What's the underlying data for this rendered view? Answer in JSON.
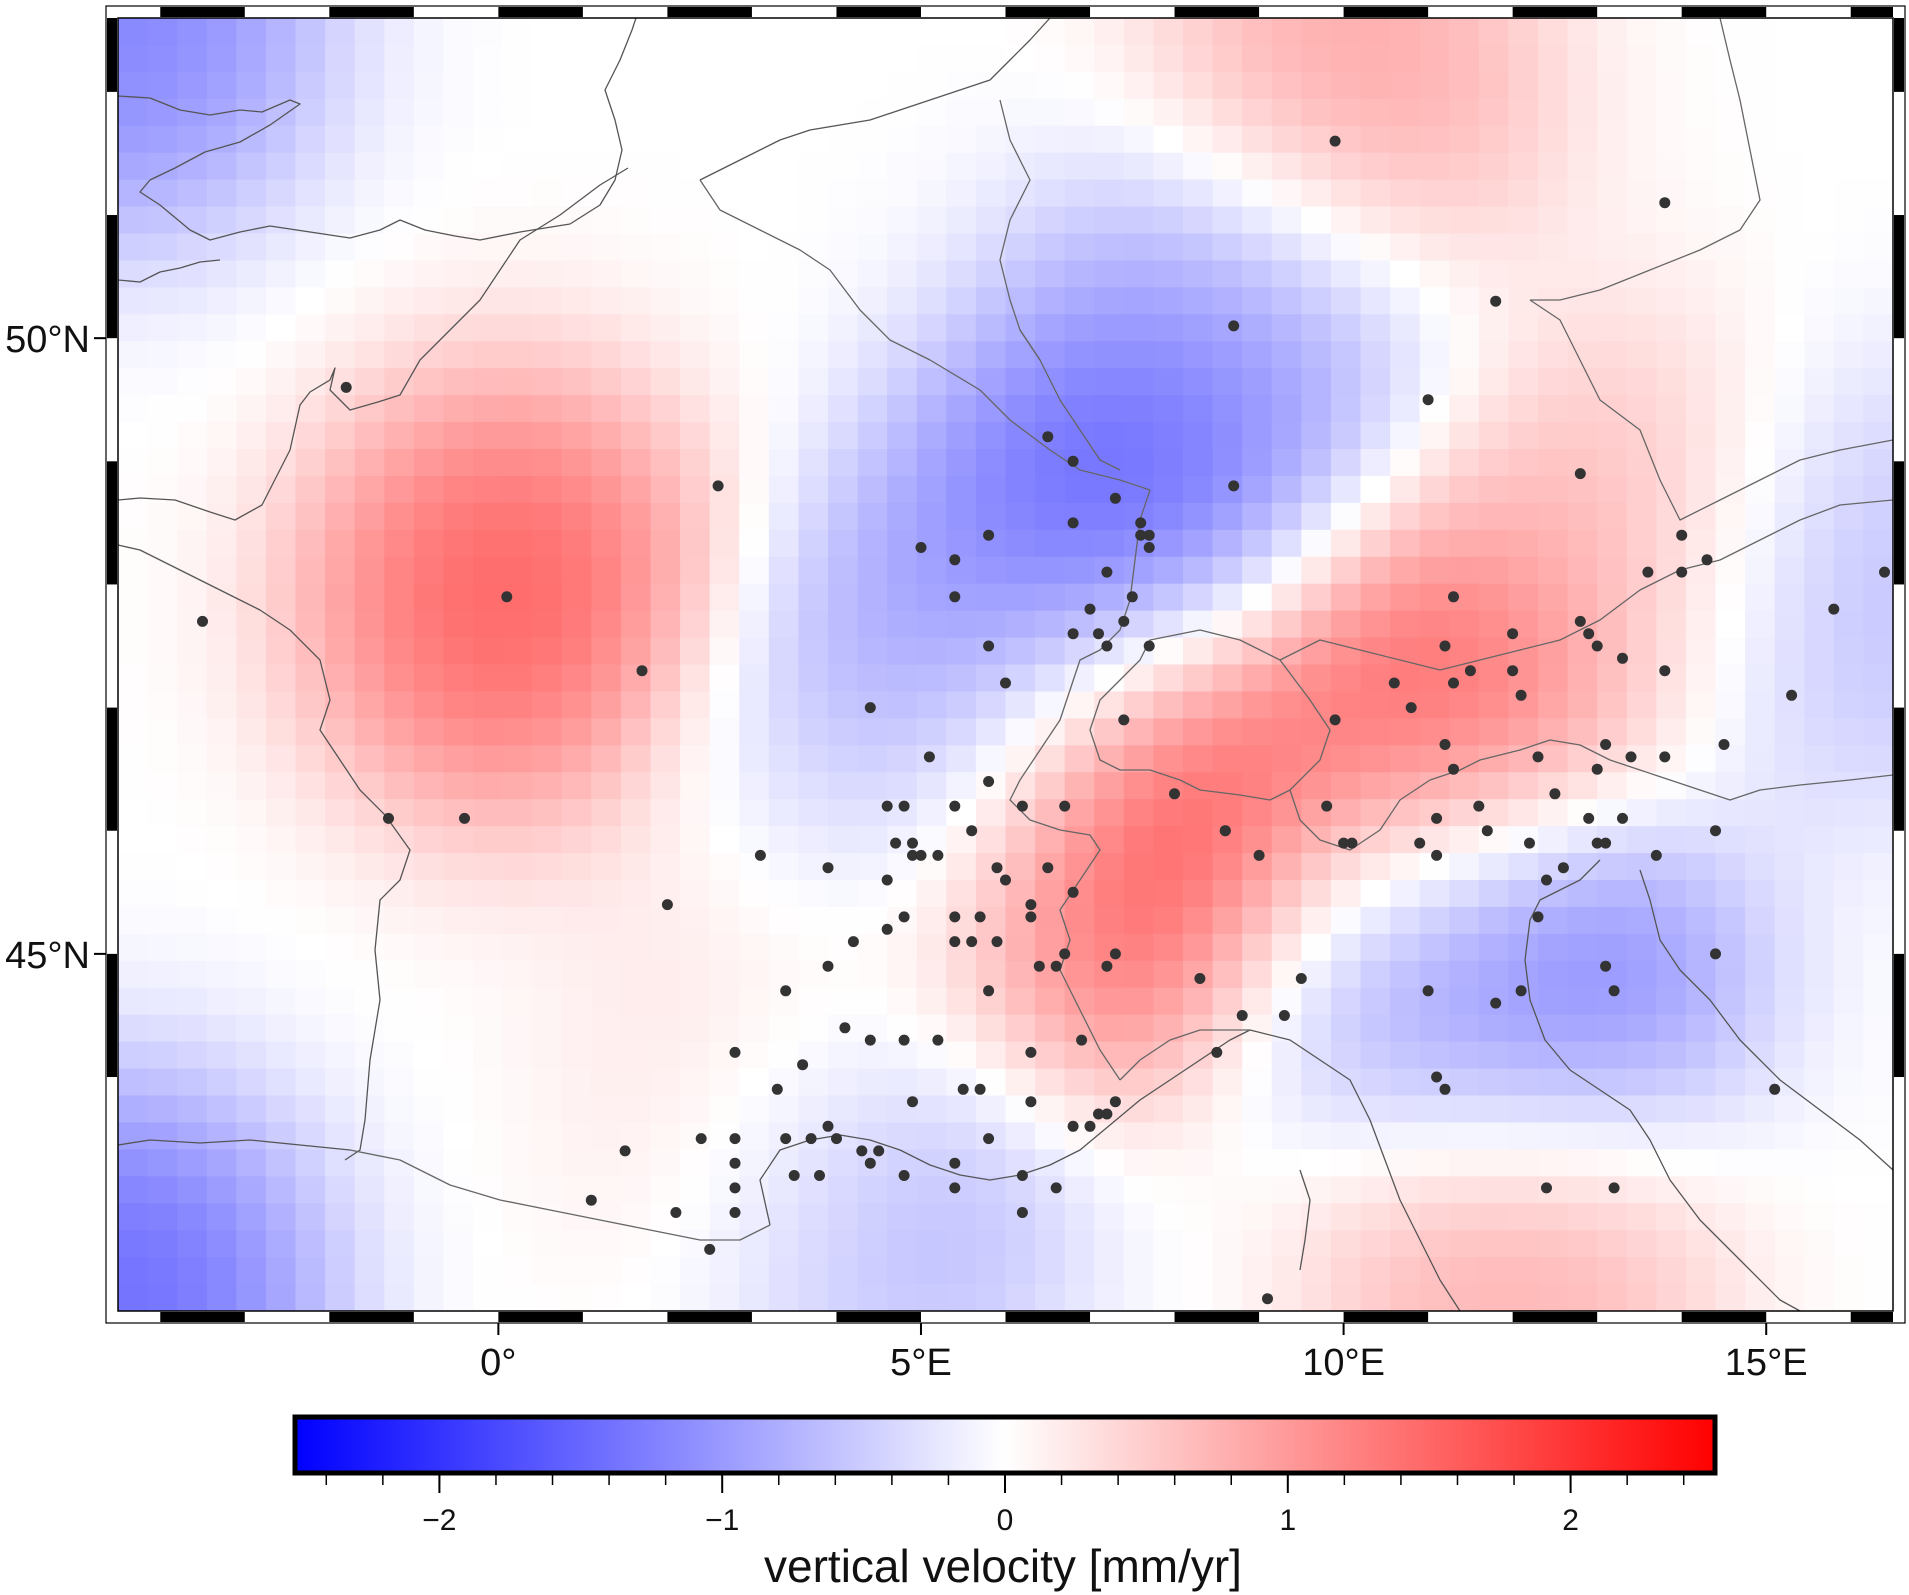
{
  "map": {
    "lat_labels": [
      {
        "lat": 50,
        "text": "50°N"
      },
      {
        "lat": 45,
        "text": "45°N"
      }
    ],
    "lon_labels": [
      {
        "lon": 0,
        "text": "0°"
      },
      {
        "lon": 5,
        "text": "5°E"
      },
      {
        "lon": 10,
        "text": "10°E"
      },
      {
        "lon": 15,
        "text": "15°E"
      }
    ],
    "extent": {
      "lon_min": -4.5,
      "lon_max": 16.5,
      "lat_min": 42.1,
      "lat_max": 52.6
    },
    "colors": {
      "negative": "#0000ff",
      "zero": "#ffffff",
      "positive": "#ff0000",
      "station": "#333333",
      "border": "#555555",
      "frame": "#000000"
    },
    "stations_shown": true,
    "grid": false
  },
  "colorbar": {
    "label": "vertical velocity [mm/yr]",
    "range": [
      -2.5,
      2.5
    ],
    "ticks": [
      {
        "value": -2,
        "text": "−2"
      },
      {
        "value": -1,
        "text": "−1"
      },
      {
        "value": 0,
        "text": "0"
      },
      {
        "value": 1,
        "text": "1"
      },
      {
        "value": 2,
        "text": "2"
      }
    ],
    "minor_step": 0.2
  },
  "field_anomalies": [
    {
      "lon": 0.1,
      "lat": 47.9,
      "value": 2.0
    },
    {
      "lon": 8.7,
      "lat": 50.1,
      "value": -1.2
    },
    {
      "lon": 7.3,
      "lat": 48.4,
      "value": -2.2
    },
    {
      "lon": 5.8,
      "lat": 47.5,
      "value": -1.0
    },
    {
      "lon": 4.8,
      "lat": 46.3,
      "value": -1.8
    },
    {
      "lon": 8.0,
      "lat": 46.4,
      "value": 2.4
    },
    {
      "lon": 11.0,
      "lat": 46.8,
      "value": 2.2
    },
    {
      "lon": 6.6,
      "lat": 45.6,
      "value": 2.0
    },
    {
      "lon": 12.3,
      "lat": 44.7,
      "value": -1.9
    },
    {
      "lon": 10.5,
      "lat": 45.1,
      "value": -0.9
    },
    {
      "lon": 4.4,
      "lat": 43.2,
      "value": -1.3
    },
    {
      "lon": 10.0,
      "lat": 52.0,
      "value": 1.2
    },
    {
      "lon": 15.8,
      "lat": 48.0,
      "value": -0.9
    },
    {
      "lon": 13.5,
      "lat": 48.4,
      "value": 0.9
    },
    {
      "lon": 12.0,
      "lat": 42.8,
      "value": 1.2
    },
    {
      "lon": -4.5,
      "lat": 42.2,
      "value": -1.9
    },
    {
      "lon": -4.5,
      "lat": 52.6,
      "value": -1.6
    },
    {
      "lon": 3.3,
      "lat": 43.6,
      "value": 0.6
    },
    {
      "lon": 4.0,
      "lat": 45.8,
      "value": 0.7
    }
  ],
  "stations": [
    [
      -1.8,
      49.6
    ],
    [
      0.1,
      47.9
    ],
    [
      -3.5,
      47.7
    ],
    [
      -1.3,
      46.1
    ],
    [
      -0.4,
      46.1
    ],
    [
      1.7,
      47.3
    ],
    [
      2.6,
      48.8
    ],
    [
      2.0,
      45.4
    ],
    [
      3.1,
      45.8
    ],
    [
      3.4,
      44.7
    ],
    [
      2.8,
      44.2
    ],
    [
      3.3,
      43.9
    ],
    [
      3.6,
      44.1
    ],
    [
      2.4,
      43.5
    ],
    [
      1.5,
      43.4
    ],
    [
      1.1,
      43.0
    ],
    [
      2.1,
      42.9
    ],
    [
      2.8,
      43.5
    ],
    [
      2.8,
      43.3
    ],
    [
      2.8,
      43.1
    ],
    [
      2.8,
      42.9
    ],
    [
      2.5,
      42.6
    ],
    [
      3.4,
      43.5
    ],
    [
      3.9,
      43.6
    ],
    [
      3.7,
      43.5
    ],
    [
      4.4,
      43.3
    ],
    [
      4.8,
      43.2
    ],
    [
      3.5,
      43.2
    ],
    [
      3.8,
      43.2
    ],
    [
      4.0,
      43.5
    ],
    [
      4.3,
      43.4
    ],
    [
      4.5,
      43.4
    ],
    [
      4.9,
      43.8
    ],
    [
      5.5,
      43.9
    ],
    [
      5.7,
      43.9
    ],
    [
      5.4,
      43.3
    ],
    [
      5.4,
      43.1
    ],
    [
      5.8,
      43.5
    ],
    [
      6.3,
      43.8
    ],
    [
      6.2,
      43.2
    ],
    [
      6.2,
      42.9
    ],
    [
      6.6,
      43.1
    ],
    [
      6.8,
      43.6
    ],
    [
      7.0,
      43.6
    ],
    [
      7.1,
      43.7
    ],
    [
      7.2,
      43.7
    ],
    [
      7.3,
      43.8
    ],
    [
      6.9,
      44.3
    ],
    [
      6.3,
      44.2
    ],
    [
      5.2,
      44.3
    ],
    [
      4.4,
      44.3
    ],
    [
      4.8,
      44.3
    ],
    [
      4.1,
      44.4
    ],
    [
      3.9,
      44.9
    ],
    [
      4.2,
      45.1
    ],
    [
      4.6,
      45.2
    ],
    [
      5.4,
      45.1
    ],
    [
      5.4,
      45.3
    ],
    [
      5.7,
      45.3
    ],
    [
      5.6,
      45.1
    ],
    [
      5.9,
      45.1
    ],
    [
      5.8,
      44.7
    ],
    [
      6.3,
      45.3
    ],
    [
      6.4,
      44.9
    ],
    [
      6.6,
      44.9
    ],
    [
      6.7,
      45.0
    ],
    [
      6.8,
      45.5
    ],
    [
      7.2,
      44.9
    ],
    [
      7.3,
      45.0
    ],
    [
      4.8,
      45.3
    ],
    [
      4.6,
      45.6
    ],
    [
      4.9,
      45.8
    ],
    [
      4.9,
      45.9
    ],
    [
      5.0,
      45.8
    ],
    [
      5.2,
      45.8
    ],
    [
      5.6,
      46.0
    ],
    [
      5.9,
      45.7
    ],
    [
      6.0,
      45.6
    ],
    [
      6.3,
      45.4
    ],
    [
      6.5,
      45.7
    ],
    [
      6.2,
      46.2
    ],
    [
      5.4,
      46.2
    ],
    [
      5.8,
      46.4
    ],
    [
      4.6,
      46.2
    ],
    [
      4.8,
      46.2
    ],
    [
      5.1,
      46.6
    ],
    [
      4.4,
      47.0
    ],
    [
      3.9,
      45.7
    ],
    [
      6.7,
      46.2
    ],
    [
      7.4,
      46.9
    ],
    [
      8.0,
      46.3
    ],
    [
      8.6,
      46.0
    ],
    [
      9.9,
      46.9
    ],
    [
      8.6,
      46.0
    ],
    [
      9.0,
      45.8
    ],
    [
      9.8,
      46.2
    ],
    [
      10.1,
      45.9
    ],
    [
      10.9,
      45.9
    ],
    [
      11.1,
      46.1
    ],
    [
      11.3,
      46.5
    ],
    [
      11.6,
      46.2
    ],
    [
      11.7,
      46.0
    ],
    [
      10.8,
      47.0
    ],
    [
      10.6,
      47.2
    ],
    [
      11.3,
      47.2
    ],
    [
      11.2,
      46.7
    ],
    [
      12.3,
      46.6
    ],
    [
      12.5,
      46.3
    ],
    [
      12.9,
      46.1
    ],
    [
      13.0,
      46.5
    ],
    [
      13.4,
      46.6
    ],
    [
      13.1,
      46.7
    ],
    [
      12.0,
      47.6
    ],
    [
      12.1,
      47.1
    ],
    [
      12.2,
      45.9
    ],
    [
      12.6,
      45.7
    ],
    [
      13.3,
      46.1
    ],
    [
      13.7,
      45.8
    ],
    [
      12.4,
      45.6
    ],
    [
      12.3,
      45.3
    ],
    [
      13.0,
      45.9
    ],
    [
      13.1,
      45.9
    ],
    [
      13.8,
      46.6
    ],
    [
      14.5,
      46.7
    ],
    [
      14.4,
      46.0
    ],
    [
      15.3,
      47.1
    ],
    [
      15.8,
      47.8
    ],
    [
      16.4,
      48.1
    ],
    [
      13.8,
      47.3
    ],
    [
      13.3,
      47.4
    ],
    [
      13.0,
      47.5
    ],
    [
      12.9,
      47.6
    ],
    [
      12.8,
      47.7
    ],
    [
      13.6,
      48.1
    ],
    [
      14.0,
      48.1
    ],
    [
      14.3,
      48.2
    ],
    [
      14.0,
      48.4
    ],
    [
      13.2,
      44.7
    ],
    [
      12.1,
      44.7
    ],
    [
      11.8,
      44.6
    ],
    [
      11.0,
      44.7
    ],
    [
      11.1,
      44.0
    ],
    [
      11.2,
      43.9
    ],
    [
      12.4,
      43.1
    ],
    [
      13.2,
      43.1
    ],
    [
      15.1,
      43.9
    ],
    [
      14.4,
      45.0
    ],
    [
      13.1,
      44.9
    ],
    [
      11.1,
      45.8
    ],
    [
      10.0,
      45.9
    ],
    [
      9.5,
      44.8
    ],
    [
      8.3,
      44.8
    ],
    [
      8.8,
      44.5
    ],
    [
      8.5,
      44.2
    ],
    [
      9.1,
      42.2
    ],
    [
      7.2,
      47.5
    ],
    [
      7.1,
      47.6
    ],
    [
      7.0,
      47.8
    ],
    [
      7.4,
      47.7
    ],
    [
      7.5,
      47.9
    ],
    [
      7.7,
      47.5
    ],
    [
      7.7,
      48.3
    ],
    [
      7.6,
      48.4
    ],
    [
      7.7,
      48.4
    ],
    [
      7.6,
      48.5
    ],
    [
      7.3,
      48.7
    ],
    [
      7.2,
      48.1
    ],
    [
      6.8,
      48.5
    ],
    [
      5.8,
      48.4
    ],
    [
      5.4,
      48.2
    ],
    [
      5.4,
      47.9
    ],
    [
      5.8,
      47.5
    ],
    [
      6.0,
      47.2
    ],
    [
      6.8,
      47.6
    ],
    [
      6.8,
      49.0
    ],
    [
      6.5,
      49.2
    ],
    [
      8.7,
      48.8
    ],
    [
      8.7,
      50.1
    ],
    [
      9.9,
      51.6
    ],
    [
      11.0,
      49.5
    ],
    [
      11.8,
      50.3
    ],
    [
      13.8,
      51.1
    ],
    [
      12.8,
      48.9
    ],
    [
      11.3,
      47.9
    ],
    [
      11.2,
      47.5
    ],
    [
      11.5,
      47.3
    ],
    [
      12.0,
      47.3
    ],
    [
      9.3,
      44.5
    ],
    [
      5.0,
      48.3
    ],
    [
      4.7,
      45.9
    ]
  ]
}
